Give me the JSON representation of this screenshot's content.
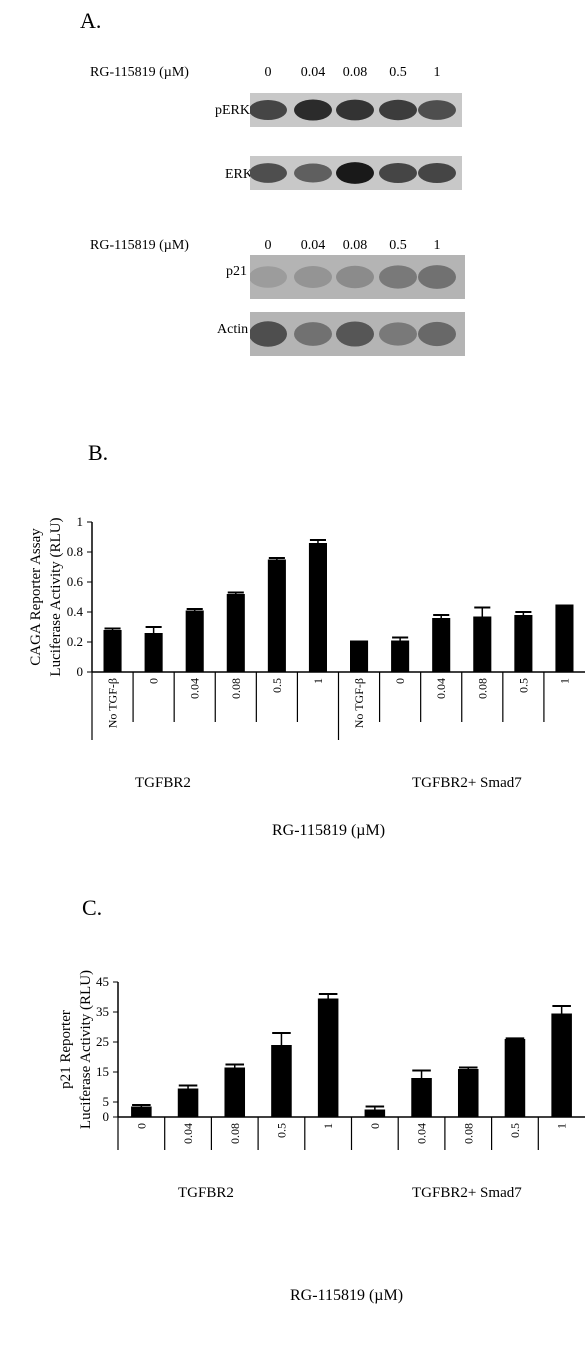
{
  "panel_a": {
    "letter": "A.",
    "drug_label_1": "RG-115819 (µM)",
    "drug_label_2": "RG-115819 (µM)",
    "concentrations": [
      "0",
      "0.04",
      "0.08",
      "0.5",
      "1"
    ],
    "blots": [
      {
        "name": "pERK",
        "intensities": [
          0.75,
          0.9,
          0.85,
          0.8,
          0.7
        ]
      },
      {
        "name": "ERK",
        "intensities": [
          0.7,
          0.6,
          1.0,
          0.75,
          0.75
        ]
      },
      {
        "name": "p21",
        "intensities": [
          0.25,
          0.3,
          0.35,
          0.45,
          0.5
        ]
      },
      {
        "name": "Actin",
        "intensities": [
          0.7,
          0.5,
          0.65,
          0.45,
          0.55
        ]
      }
    ]
  },
  "panel_b": {
    "letter": "B.",
    "group_1": "TGFBR2",
    "group_2": "TGFBR2+ Smad7",
    "xlabel": "RG-115819 (µM)",
    "chart_data": {
      "type": "bar",
      "ylabel_line1": "CAGA Reporter Assay",
      "ylabel_line2": "Luciferase Activity (RLU)",
      "ylim": [
        0,
        1
      ],
      "yticks": [
        "0",
        "0.2",
        "0.4",
        "0.6",
        "0.8",
        "1"
      ],
      "categories": [
        "No TGF-β",
        "0",
        "0.04",
        "0.08",
        "0.5",
        "1",
        "No TGF-β",
        "0",
        "0.04",
        "0.08",
        "0.5",
        "1"
      ],
      "values": [
        0.28,
        0.26,
        0.41,
        0.52,
        0.75,
        0.86,
        0.21,
        0.21,
        0.36,
        0.37,
        0.38,
        0.45
      ],
      "errors": [
        0.01,
        0.04,
        0.01,
        0.01,
        0.01,
        0.02,
        0.0,
        0.02,
        0.02,
        0.06,
        0.02,
        0.0
      ]
    }
  },
  "panel_c": {
    "letter": "C.",
    "group_1": "TGFBR2",
    "group_2": "TGFBR2+ Smad7",
    "xlabel": "RG-115819 (µM)",
    "chart_data": {
      "type": "bar",
      "ylabel_line1": "p21 Reporter",
      "ylabel_line2": "Luciferase Activity (RLU)",
      "ylim": [
        0,
        45
      ],
      "yticks": [
        "0",
        "5",
        "15",
        "25",
        "35",
        "45"
      ],
      "ytick_values": [
        0,
        5,
        15,
        25,
        35,
        45
      ],
      "categories": [
        "0",
        "0.04",
        "0.08",
        "0.5",
        "1",
        "0",
        "0.04",
        "0.08",
        "0.5",
        "1"
      ],
      "values": [
        3.5,
        9.5,
        16.5,
        24,
        39.5,
        2.5,
        13,
        16,
        26,
        34.5
      ],
      "errors": [
        0.5,
        1,
        1,
        4,
        1.5,
        1,
        2.5,
        0.5,
        0.2,
        2.5
      ]
    }
  }
}
